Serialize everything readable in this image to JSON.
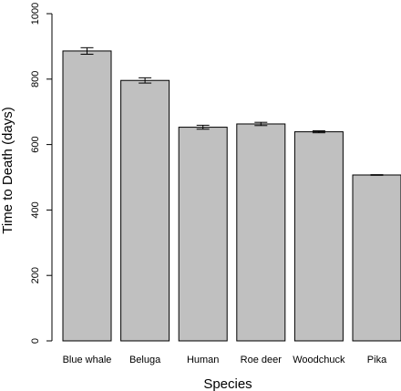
{
  "chart_data": {
    "type": "bar",
    "categories": [
      "Blue whale",
      "Beluga",
      "Human",
      "Roe deer",
      "Woodchuck",
      "Pika"
    ],
    "values": [
      886,
      796,
      653,
      663,
      639,
      507
    ],
    "errors": [
      10,
      8,
      6,
      5,
      3,
      1
    ],
    "xlabel": "Species",
    "ylabel": "Time to Death (days)",
    "ylim": [
      0,
      1000
    ],
    "yticks": [
      0,
      200,
      400,
      600,
      800,
      1000
    ],
    "grid": false,
    "colors": {
      "bar_fill": "#c0c0c0",
      "bar_stroke": "#000000"
    }
  }
}
